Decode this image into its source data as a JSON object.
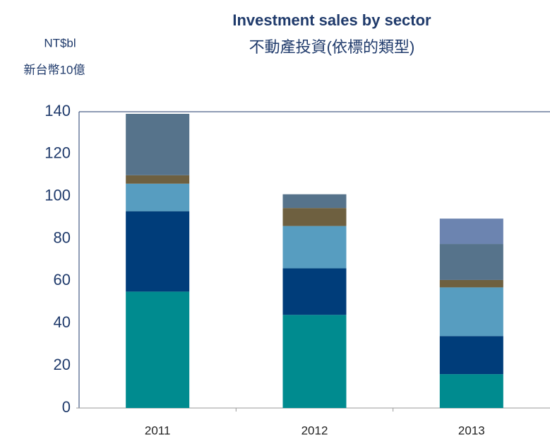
{
  "chart_data": {
    "type": "stacked_bar",
    "title": "Investment sales by sector",
    "subtitle": "不動產投資(依標的類型)",
    "y_label": "NT$bl",
    "y_label_secondary": "新台幣10億",
    "categories": [
      "2011",
      "2012",
      "2013"
    ],
    "series": [
      {
        "color": "#008b8f",
        "values": [
          55,
          44,
          16
        ]
      },
      {
        "color": "#003d7a",
        "values": [
          38,
          22,
          18
        ]
      },
      {
        "color": "#579dc0",
        "values": [
          13,
          20,
          23
        ]
      },
      {
        "color": "#6e6040",
        "values": [
          4,
          8.5,
          3.5
        ]
      },
      {
        "color": "#56738b",
        "values": [
          29,
          6.5,
          17
        ]
      },
      {
        "color": "#6c84b0",
        "values": [
          0,
          0,
          12
        ]
      }
    ],
    "ylim": [
      0,
      140
    ],
    "yticks": [
      0,
      20,
      40,
      60,
      80,
      100,
      120,
      140
    ],
    "grid": false
  }
}
